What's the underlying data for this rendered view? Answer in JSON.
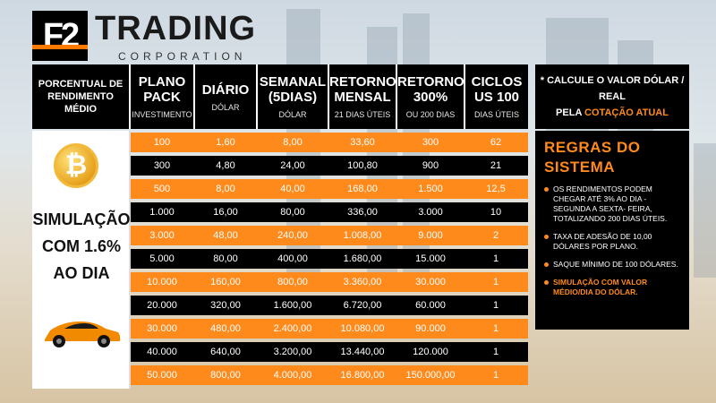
{
  "logo": {
    "mark": "F2",
    "title": "TRADING",
    "subtitle": "CORPORATION"
  },
  "table": {
    "headers": [
      {
        "main": "PORCENTUAL DE RENDIMENTO MÉDIO",
        "sub": ""
      },
      {
        "main": "PLANO PACK",
        "sub": "INVESTIMENTO"
      },
      {
        "main": "DIÁRIO",
        "sub": "DÓLAR"
      },
      {
        "main": "SEMANAL (5DIAS)",
        "sub": "DÓLAR"
      },
      {
        "main": "RETORNO MENSAL",
        "sub": "21 DIAS ÚTEIS"
      },
      {
        "main": "RETORNO 300%",
        "sub": "OU 200 DIAS"
      },
      {
        "main": "CICLOS US 100",
        "sub": "DIAS ÚTEIS"
      }
    ],
    "rows": [
      [
        "100",
        "1,60",
        "8,00",
        "33,60",
        "300",
        "62"
      ],
      [
        "300",
        "4,80",
        "24,00",
        "100,80",
        "900",
        "21"
      ],
      [
        "500",
        "8,00",
        "40,00",
        "168,00",
        "1.500",
        "12,5"
      ],
      [
        "1.000",
        "16,00",
        "80,00",
        "336,00",
        "3.000",
        "10"
      ],
      [
        "3.000",
        "48,00",
        "240,00",
        "1.008,00",
        "9.000",
        "2"
      ],
      [
        "5.000",
        "80,00",
        "400,00",
        "1.680,00",
        "15.000",
        "1"
      ],
      [
        "10.000",
        "160,00",
        "800,00",
        "3.360,00",
        "30.000",
        "1"
      ],
      [
        "20.000",
        "320,00",
        "1.600,00",
        "6.720,00",
        "60.000",
        "1"
      ],
      [
        "30.000",
        "480,00",
        "2.400,00",
        "10.080,00",
        "90.000",
        "1"
      ],
      [
        "40.000",
        "640,00",
        "3.200,00",
        "13.440,00",
        "120.000",
        "1"
      ],
      [
        "50.000",
        "800,00",
        "4.000,00",
        "16.800,00",
        "150.000,00",
        "1"
      ]
    ]
  },
  "left_panel": {
    "coin_symbol": "₿",
    "simulation_line1": "SIMULAÇÃO",
    "simulation_line2": "COM 1.6%",
    "simulation_line3": "AO DIA"
  },
  "calc_note": {
    "line1": "* CALCULE O VALOR DÓLAR / REAL",
    "line2_prefix": "PELA ",
    "line2_highlight": "COTAÇÃO ATUAL"
  },
  "rules": {
    "title": "REGRAS DO SISTEMA",
    "items": [
      "OS RENDIMENTOS PODEM CHEGAR ATÉ 3% AO DIA - SEGUNDA A SEXTA- FEIRA, TOTALIZANDO 200 DIAS ÚTEIS.",
      "TAXA DE ADESÃO DE 10,00 DÓLARES POR PLANO.",
      "SAQUE MÍNIMO DE 100 DÓLARES.",
      "SIMULAÇÃO COM VALOR MÉDIO/DIA DO DÓLAR."
    ]
  },
  "colors": {
    "accent": "#ff8a1c",
    "dark": "#000000",
    "light": "#ffffff"
  }
}
